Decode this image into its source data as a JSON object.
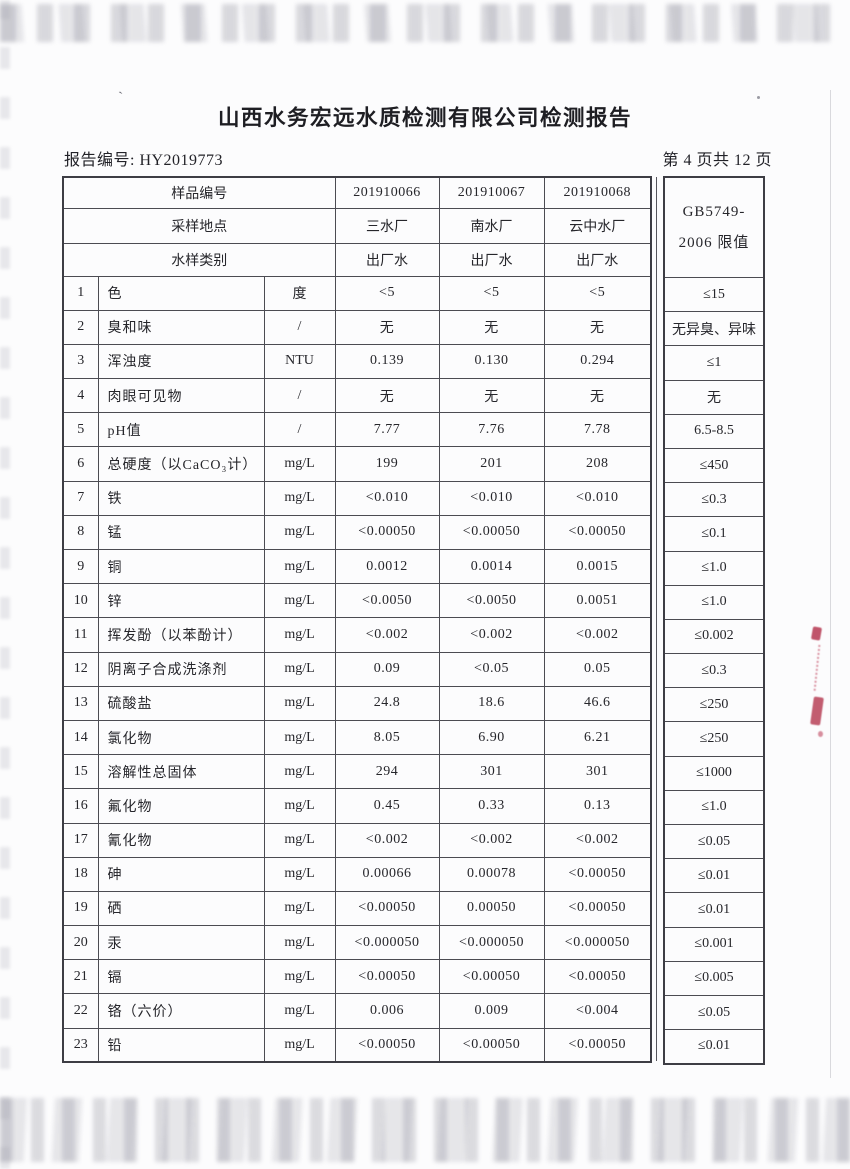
{
  "page": {
    "title": "山西水务宏远水质检测有限公司检测报告",
    "report_no_label": "报告编号: HY2019773",
    "page_indicator": "第 4 页共 12 页"
  },
  "table": {
    "header": {
      "sample_id_label": "样品编号",
      "sample_ids": [
        "201910066",
        "201910067",
        "201910068"
      ],
      "location_label": "采样地点",
      "locations": [
        "三水厂",
        "南水厂",
        "云中水厂"
      ],
      "type_label": "水样类别",
      "types": [
        "出厂水",
        "出厂水",
        "出厂水"
      ],
      "limit_header_line1": "GB5749-",
      "limit_header_line2": "2006 限值"
    },
    "rows": [
      {
        "no": "1",
        "name": "色",
        "unit": "度",
        "values": [
          "<5",
          "<5",
          "<5"
        ],
        "limit": "≤15"
      },
      {
        "no": "2",
        "name": "臭和味",
        "unit": "/",
        "values": [
          "无",
          "无",
          "无"
        ],
        "limit": "无异臭、异味"
      },
      {
        "no": "3",
        "name": "浑浊度",
        "unit": "NTU",
        "values": [
          "0.139",
          "0.130",
          "0.294"
        ],
        "limit": "≤1"
      },
      {
        "no": "4",
        "name": "肉眼可见物",
        "unit": "/",
        "values": [
          "无",
          "无",
          "无"
        ],
        "limit": "无"
      },
      {
        "no": "5",
        "name": "pH值",
        "unit": "/",
        "values": [
          "7.77",
          "7.76",
          "7.78"
        ],
        "limit": "6.5-8.5"
      },
      {
        "no": "6",
        "name": "总硬度（以CaCO₃计）",
        "unit": "mg/L",
        "values": [
          "199",
          "201",
          "208"
        ],
        "limit": "≤450"
      },
      {
        "no": "7",
        "name": "铁",
        "unit": "mg/L",
        "values": [
          "<0.010",
          "<0.010",
          "<0.010"
        ],
        "limit": "≤0.3"
      },
      {
        "no": "8",
        "name": "锰",
        "unit": "mg/L",
        "values": [
          "<0.00050",
          "<0.00050",
          "<0.00050"
        ],
        "limit": "≤0.1"
      },
      {
        "no": "9",
        "name": "铜",
        "unit": "mg/L",
        "values": [
          "0.0012",
          "0.0014",
          "0.0015"
        ],
        "limit": "≤1.0"
      },
      {
        "no": "10",
        "name": "锌",
        "unit": "mg/L",
        "values": [
          "<0.0050",
          "<0.0050",
          "0.0051"
        ],
        "limit": "≤1.0"
      },
      {
        "no": "11",
        "name": "挥发酚（以苯酚计）",
        "unit": "mg/L",
        "values": [
          "<0.002",
          "<0.002",
          "<0.002"
        ],
        "limit": "≤0.002"
      },
      {
        "no": "12",
        "name": "阴离子合成洗涤剂",
        "unit": "mg/L",
        "values": [
          "0.09",
          "<0.05",
          "0.05"
        ],
        "limit": "≤0.3"
      },
      {
        "no": "13",
        "name": "硫酸盐",
        "unit": "mg/L",
        "values": [
          "24.8",
          "18.6",
          "46.6"
        ],
        "limit": "≤250"
      },
      {
        "no": "14",
        "name": "氯化物",
        "unit": "mg/L",
        "values": [
          "8.05",
          "6.90",
          "6.21"
        ],
        "limit": "≤250"
      },
      {
        "no": "15",
        "name": "溶解性总固体",
        "unit": "mg/L",
        "values": [
          "294",
          "301",
          "301"
        ],
        "limit": "≤1000"
      },
      {
        "no": "16",
        "name": "氟化物",
        "unit": "mg/L",
        "values": [
          "0.45",
          "0.33",
          "0.13"
        ],
        "limit": "≤1.0"
      },
      {
        "no": "17",
        "name": "氰化物",
        "unit": "mg/L",
        "values": [
          "<0.002",
          "<0.002",
          "<0.002"
        ],
        "limit": "≤0.05"
      },
      {
        "no": "18",
        "name": "砷",
        "unit": "mg/L",
        "values": [
          "0.00066",
          "0.00078",
          "<0.00050"
        ],
        "limit": "≤0.01"
      },
      {
        "no": "19",
        "name": "硒",
        "unit": "mg/L",
        "values": [
          "<0.00050",
          "0.00050",
          "<0.00050"
        ],
        "limit": "≤0.01"
      },
      {
        "no": "20",
        "name": "汞",
        "unit": "mg/L",
        "values": [
          "<0.000050",
          "<0.000050",
          "<0.000050"
        ],
        "limit": "≤0.001"
      },
      {
        "no": "21",
        "name": "镉",
        "unit": "mg/L",
        "values": [
          "<0.00050",
          "<0.00050",
          "<0.00050"
        ],
        "limit": "≤0.005"
      },
      {
        "no": "22",
        "name": "铬（六价）",
        "unit": "mg/L",
        "values": [
          "0.006",
          "0.009",
          "<0.004"
        ],
        "limit": "≤0.05"
      },
      {
        "no": "23",
        "name": "铅",
        "unit": "mg/L",
        "values": [
          "<0.00050",
          "<0.00050",
          "<0.00050"
        ],
        "limit": "≤0.01"
      }
    ]
  },
  "artifacts": {
    "stamp_color": "#b22c46",
    "tick_mark": "`"
  }
}
